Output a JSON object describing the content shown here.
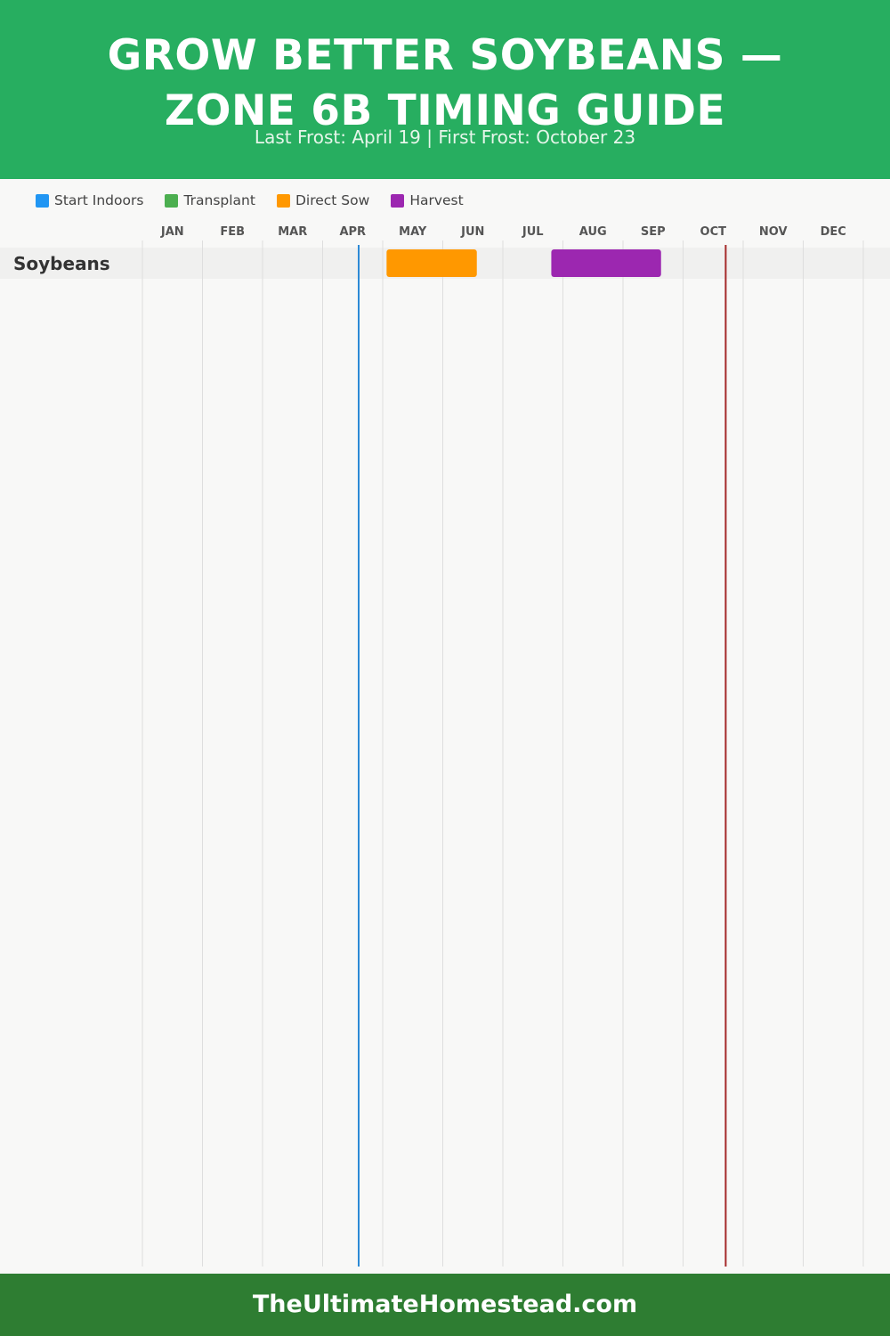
{
  "header": {
    "title_line1": "GROW BETTER SOYBEANS —",
    "title_line2": "ZONE 6B TIMING GUIDE",
    "subtitle": "Last Frost: April 19 | First Frost: October 23"
  },
  "legend": [
    {
      "label": "Start Indoors",
      "color": "#2196f3"
    },
    {
      "label": "Transplant",
      "color": "#4caf50"
    },
    {
      "label": "Direct Sow",
      "color": "#ff9800"
    },
    {
      "label": "Harvest",
      "color": "#9c27b0"
    }
  ],
  "chart_data": {
    "type": "gantt",
    "months": [
      "JAN",
      "FEB",
      "MAR",
      "APR",
      "MAY",
      "JUN",
      "JUL",
      "AUG",
      "SEP",
      "OCT",
      "NOV",
      "DEC"
    ],
    "rows": [
      {
        "crop": "Soybeans",
        "bars": [
          {
            "phase": "Direct Sow",
            "start": "May 3",
            "end": "Jun 18",
            "color": "#ff9800"
          },
          {
            "phase": "Harvest",
            "start": "Jul 26",
            "end": "Sep 20",
            "color": "#9c27b0"
          }
        ]
      }
    ],
    "markers": [
      {
        "label": "Last Frost",
        "date": "Apr 19",
        "color": "#2d8ad6"
      },
      {
        "label": "First Frost",
        "date": "Oct 23",
        "color": "#a52a2a"
      }
    ],
    "grid": true
  },
  "footer": {
    "site": "TheUltimateHomestead.com"
  }
}
